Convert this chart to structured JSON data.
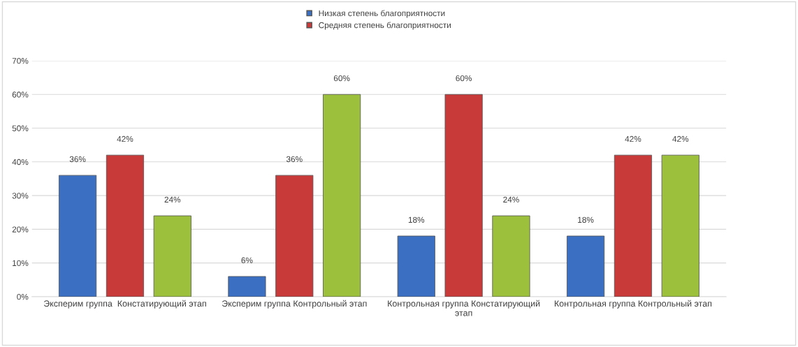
{
  "chart_data": {
    "type": "bar",
    "categories": [
      "Эксперим группа  Констатирующий этап",
      "Эксперим группа Контрольный этап",
      "Контрольная группа Констатирующий этап",
      "Контрольная группа Контрольный этап"
    ],
    "series": [
      {
        "name": "Низкая степень благоприятности",
        "color": "#3b6fc2",
        "values": [
          36,
          6,
          18,
          18
        ],
        "value_labels": [
          "36%",
          "6%",
          "18%",
          "18%"
        ]
      },
      {
        "name": "Средняя степень благоприятности",
        "color": "#c83a3a",
        "values": [
          42,
          36,
          60,
          42
        ],
        "value_labels": [
          "42%",
          "36%",
          "60%",
          "42%"
        ]
      },
      {
        "color": "#9cc03c",
        "values": [
          24,
          60,
          24,
          42
        ],
        "value_labels": [
          "24%",
          "60%",
          "24%",
          "42%"
        ]
      }
    ],
    "ylim": [
      0,
      70
    ],
    "yticks": [
      {
        "value": 0,
        "label": "0%"
      },
      {
        "value": 10,
        "label": "10%"
      },
      {
        "value": 20,
        "label": "20%"
      },
      {
        "value": 30,
        "label": "30%"
      },
      {
        "value": 40,
        "label": "40%"
      },
      {
        "value": 50,
        "label": "50%"
      },
      {
        "value": 60,
        "label": "60%"
      },
      {
        "value": 70,
        "label": "70%"
      }
    ],
    "grid": "y",
    "legend": "top"
  }
}
